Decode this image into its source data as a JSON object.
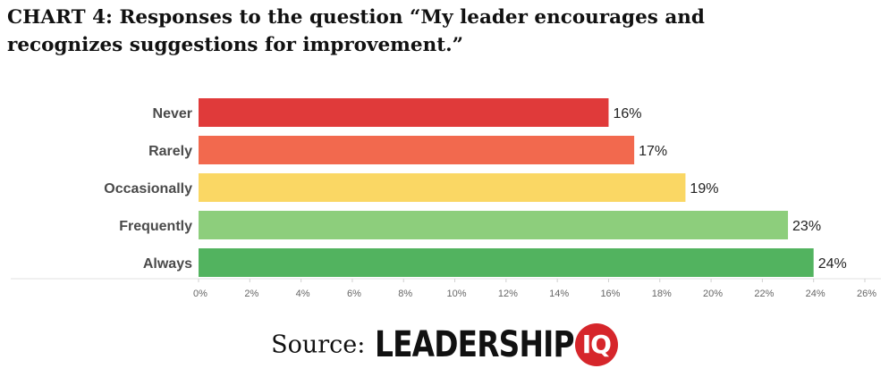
{
  "title": "CHART 4: Responses to the question “My leader encourages and recognizes suggestions for improvement.”",
  "chart_data": {
    "type": "bar",
    "orientation": "horizontal",
    "categories": [
      "Never",
      "Rarely",
      "Occasionally",
      "Frequently",
      "Always"
    ],
    "values": [
      16,
      17,
      19,
      23,
      24
    ],
    "value_labels": [
      "16%",
      "17%",
      "19%",
      "23%",
      "24%"
    ],
    "bar_colors": [
      "#e03a3a",
      "#f2694e",
      "#fad764",
      "#8dce7c",
      "#52b35f"
    ],
    "x_ticks": [
      "0%",
      "2%",
      "4%",
      "6%",
      "8%",
      "10%",
      "12%",
      "14%",
      "16%",
      "18%",
      "20%",
      "22%",
      "24%",
      "26%"
    ],
    "xlim": [
      0,
      26
    ],
    "grid": false,
    "legend": "none"
  },
  "footer": {
    "source_label": "Source:",
    "logo_text": "LEADERSHIP",
    "logo_badge": "IQ"
  }
}
